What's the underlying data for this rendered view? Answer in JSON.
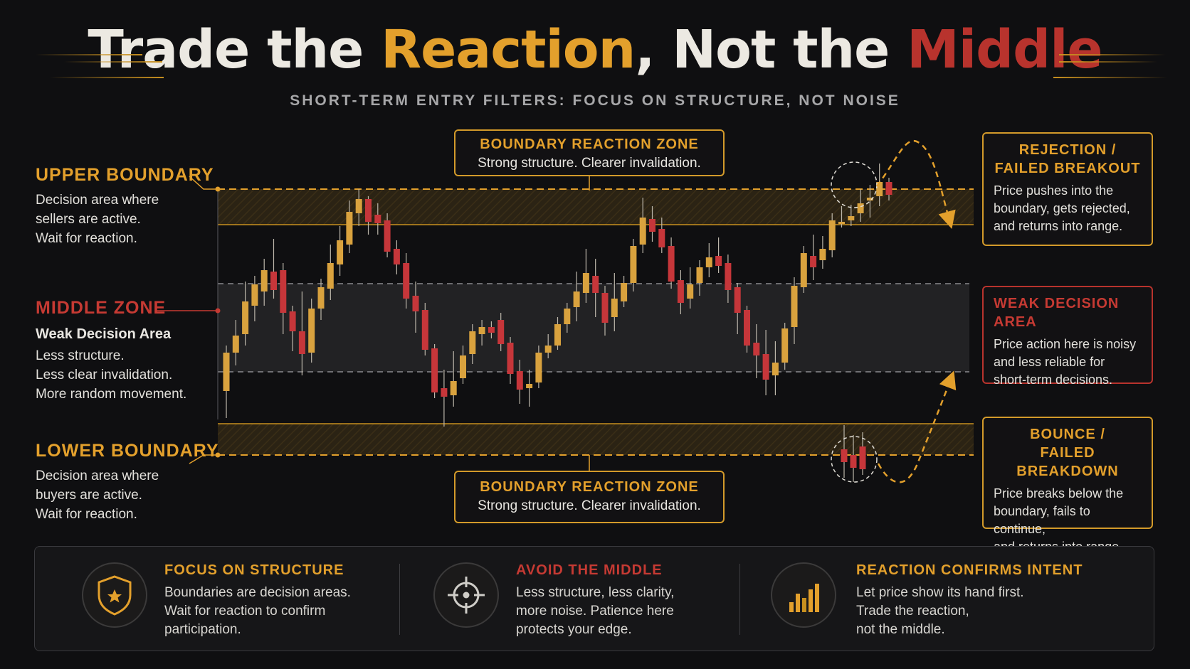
{
  "title": {
    "part1": "Trade the ",
    "part2": "Reaction",
    "part3": ", Not the ",
    "part4": "Middle"
  },
  "subtitle": "SHORT-TERM ENTRY FILTERS: FOCUS ON STRUCTURE, NOT NOISE",
  "left_labels": {
    "upper": {
      "title": "UPPER BOUNDARY",
      "lines": [
        "Decision area where",
        "sellers are active.",
        "Wait for reaction."
      ]
    },
    "middle": {
      "title": "MIDDLE ZONE",
      "subtitle": "Weak Decision Area",
      "lines": [
        "Less structure.",
        "Less clear invalidation.",
        "More random movement."
      ]
    },
    "lower": {
      "title": "LOWER BOUNDARY",
      "lines": [
        "Decision area where",
        "buyers are active.",
        "Wait for reaction."
      ]
    }
  },
  "zone_boxes": {
    "top": {
      "title": "BOUNDARY REACTION ZONE",
      "text": "Strong structure. Clearer invalidation."
    },
    "bottom": {
      "title": "BOUNDARY REACTION ZONE",
      "text": "Strong structure. Clearer invalidation."
    }
  },
  "callouts": {
    "rejection": {
      "title_lines": [
        "REJECTION /",
        "FAILED BREAKOUT"
      ],
      "lines": [
        "Price pushes into the",
        "boundary, gets rejected,",
        "and returns into range."
      ]
    },
    "weak": {
      "title": "WEAK DECISION AREA",
      "lines": [
        "Price action here is noisy",
        "and less reliable for",
        "short-term decisions."
      ]
    },
    "bounce": {
      "title_lines": [
        "BOUNCE /",
        "FAILED BREAKDOWN"
      ],
      "lines": [
        "Price breaks below the",
        "boundary, fails to continue,",
        "and returns into range."
      ]
    }
  },
  "features": [
    {
      "icon": "shield-star-icon",
      "title": "FOCUS ON STRUCTURE",
      "lines": [
        "Boundaries are decision areas.",
        "Wait for reaction to confirm",
        "participation."
      ]
    },
    {
      "icon": "crosshair-icon",
      "title": "AVOID THE MIDDLE",
      "lines": [
        "Less structure, less clarity,",
        "more noise. Patience here",
        "protects your edge."
      ]
    },
    {
      "icon": "bar-chart-icon",
      "title": "REACTION CONFIRMS INTENT",
      "lines": [
        "Let price show its hand first.",
        "Trade the reaction,",
        "not the middle."
      ]
    }
  ],
  "colors": {
    "gold": "#e3a02c",
    "red": "#b8332d",
    "background": "#0f0f11",
    "bull_candle": "#d9a23e",
    "bear_candle": "#c6363a"
  }
}
